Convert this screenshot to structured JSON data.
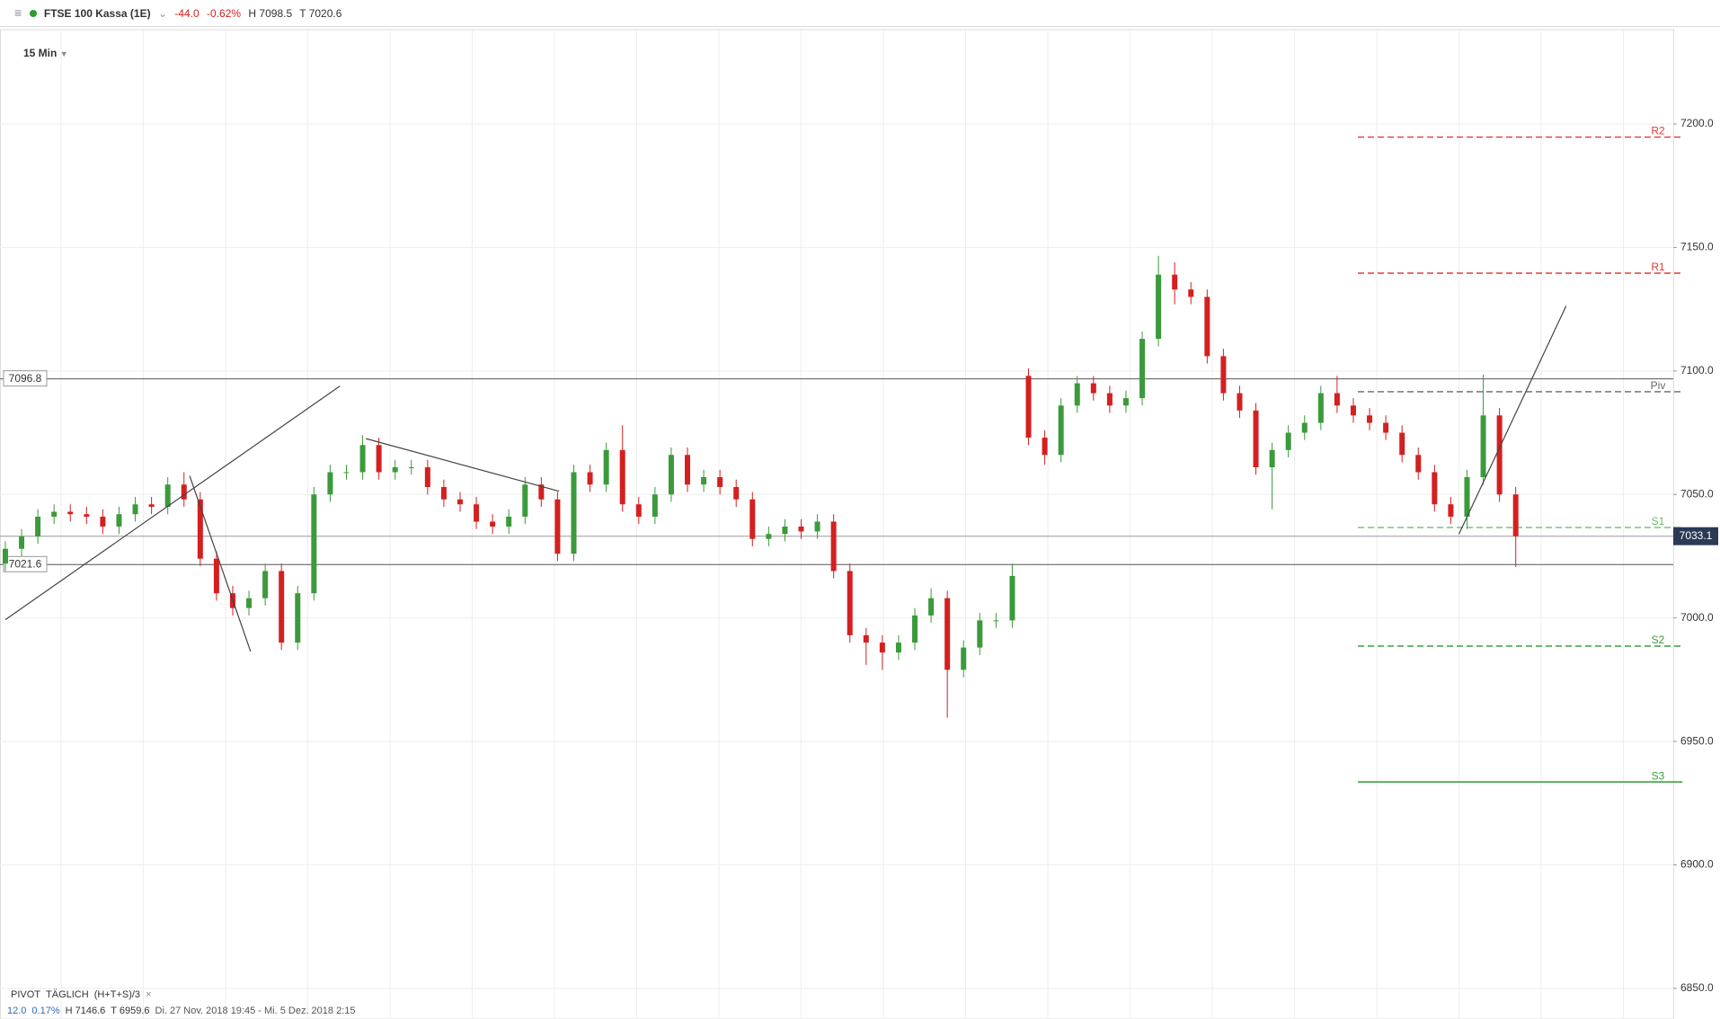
{
  "header": {
    "menu": "≡",
    "title": "FTSE 100 Kassa (1E)",
    "change": "-44.0",
    "change_pct": "-0.62%",
    "high": "H 7098.5",
    "low": "T 7020.6",
    "interval": "15 Min"
  },
  "footer": {
    "indicator": "PIVOT",
    "period": "TÄGLICH",
    "formula": "(H+T+S)/3",
    "close": "×",
    "change": "12.0",
    "change_pct": "0.17%",
    "high": "H 7146.6",
    "low": "T 6959.6",
    "range": "Di. 27 Nov. 2018 19:45 - Mi. 5 Dez. 2018 2:15"
  },
  "chart_data": {
    "type": "candlestick",
    "up_color": "#3b9a3b",
    "down_color": "#d42020",
    "xlim": [
      -0.33,
      102.7
    ],
    "ylim": [
      6837.6,
      7238.2
    ],
    "yticks": [
      {
        "value": 7200,
        "label": "7200.0"
      },
      {
        "value": 7150,
        "label": "7150.0"
      },
      {
        "value": 7100,
        "label": "7100.0"
      },
      {
        "value": 7050,
        "label": "7050.0"
      },
      {
        "value": 7000,
        "label": "7000.0"
      },
      {
        "value": 6950,
        "label": "6950.0"
      },
      {
        "value": 6900,
        "label": "6900.0"
      },
      {
        "value": 6850,
        "label": "6850.0"
      }
    ],
    "grid": true,
    "open": [
      7022,
      7028,
      7033,
      7041,
      7043,
      7042,
      7041,
      7037,
      7042,
      7046,
      7045,
      7054,
      7048,
      7024,
      7010,
      7004,
      7008,
      7019,
      6990,
      7010,
      7050,
      7059,
      7059,
      7070,
      7059,
      7061,
      7061,
      7053,
      7048,
      7046,
      7039,
      7037,
      7041,
      7054,
      7048,
      7026,
      7059,
      7054,
      7068,
      7046,
      7041,
      7050,
      7066,
      7054,
      7057,
      7053,
      7048,
      7032,
      7034,
      7037,
      7035,
      7039,
      7019,
      6993,
      6990,
      6986,
      6990,
      7001,
      7008,
      6979,
      6988,
      6999,
      6999,
      7098,
      7073,
      7066,
      7086,
      7095,
      7091,
      7086,
      7089,
      7113,
      7139,
      7133,
      7130,
      7106,
      7091,
      7084,
      7061,
      7068,
      7075,
      7079,
      7091,
      7086,
      7082,
      7079,
      7075,
      7066,
      7059,
      7046,
      7041,
      7057,
      7082,
      7050
    ],
    "high": [
      7031,
      7036,
      7044,
      7046,
      7046,
      7045,
      7044,
      7045,
      7049,
      7049,
      7057,
      7059,
      7051,
      7027,
      7013,
      7011,
      7022,
      7022,
      7013,
      7053,
      7062,
      7062,
      7074,
      7073,
      7064,
      7064,
      7064,
      7056,
      7051,
      7049,
      7042,
      7044,
      7057,
      7057,
      7051,
      7062,
      7062,
      7071,
      7078,
      7049,
      7053,
      7069,
      7069,
      7060,
      7060,
      7056,
      7051,
      7037,
      7040,
      7040,
      7042,
      7042,
      7022,
      6996,
      6993,
      6993,
      7004,
      7012,
      7011,
      6991,
      7002,
      7002,
      7022,
      7101,
      7076,
      7089,
      7098,
      7098,
      7094,
      7092,
      7116,
      7146.6,
      7144,
      7136,
      7133,
      7109,
      7094,
      7087,
      7071,
      7078,
      7082,
      7094,
      7098,
      7089,
      7085,
      7082,
      7078,
      7069,
      7062,
      7049,
      7060,
      7098.5,
      7085,
      7053
    ],
    "low": [
      7019,
      7025,
      7030,
      7038,
      7039,
      7038,
      7034,
      7034,
      7039,
      7042,
      7042,
      7045,
      7021,
      7007,
      7001,
      7001,
      7005,
      6987,
      6987,
      7007,
      7047,
      7056,
      7056,
      7056,
      7056,
      7058,
      7050,
      7045,
      7043,
      7036,
      7034,
      7034,
      7038,
      7045,
      7023,
      7023,
      7051,
      7051,
      7043,
      7038,
      7038,
      7047,
      7051,
      7051,
      7050,
      7045,
      7029,
      7029,
      7031,
      7032,
      7032,
      7016,
      6990,
      6981,
      6979,
      6983,
      6987,
      6998,
      6959.6,
      6976,
      6985,
      6996,
      6996,
      7070,
      7062,
      7063,
      7083,
      7088,
      7083,
      7083,
      7086,
      7110,
      7127,
      7127,
      7103,
      7088,
      7081,
      7058,
      7044,
      7065,
      7072,
      7076,
      7083,
      7079,
      7076,
      7072,
      7063,
      7056,
      7043,
      7038,
      7036,
      7054,
      7047,
      7020.6
    ],
    "close": [
      7028,
      7033,
      7041,
      7043,
      7042,
      7041,
      7037,
      7042,
      7046,
      7045,
      7054,
      7048,
      7024,
      7010,
      7004,
      7008,
      7019,
      6990,
      7010,
      7050,
      7059,
      7059,
      7070,
      7059,
      7061,
      7061,
      7053,
      7048,
      7046,
      7039,
      7037,
      7041,
      7054,
      7048,
      7026,
      7059,
      7054,
      7068,
      7046,
      7041,
      7050,
      7066,
      7054,
      7057,
      7053,
      7048,
      7032,
      7034,
      7037,
      7035,
      7039,
      7019,
      6993,
      6990,
      6986,
      6990,
      7001,
      7008,
      6979,
      6988,
      6999,
      6999,
      7017,
      7073,
      7066,
      7086,
      7095,
      7091,
      7086,
      7089,
      7113,
      7139,
      7133,
      7130,
      7106,
      7091,
      7084,
      7061,
      7068,
      7075,
      7079,
      7091,
      7086,
      7082,
      7079,
      7075,
      7066,
      7059,
      7046,
      7041,
      7057,
      7082,
      7050,
      7033.1
    ],
    "levels": [
      7096.8,
      7021.6
    ],
    "last_price": 7033.1,
    "trendlines": [
      {
        "x": [
          0,
          20.6
        ],
        "y": [
          6999.3,
          7093.9
        ]
      },
      {
        "x": [
          11.35,
          15.1
        ],
        "y": [
          7057.5,
          6986.4
        ]
      },
      {
        "x": [
          22.2,
          34.1
        ],
        "y": [
          7072.6,
          7051.3
        ]
      },
      {
        "x": [
          89.5,
          96.1
        ],
        "y": [
          7033.9,
          7126.3
        ]
      }
    ],
    "pivots": [
      {
        "name": "R2",
        "value": 7194.7,
        "color": "#e03a3a",
        "line": "dashed"
      },
      {
        "name": "R1",
        "value": 7139.6,
        "color": "#e03a3a",
        "line": "dashed"
      },
      {
        "name": "Piv",
        "value": 7091.6,
        "color": "#666666",
        "line": "dashed"
      },
      {
        "name": "S1",
        "value": 7036.6,
        "color": "#6cbf6c",
        "line": "dashed"
      },
      {
        "name": "S2",
        "value": 6988.6,
        "color": "#3f9f3f",
        "line": "dashed"
      },
      {
        "name": "S3",
        "value": 6933.6,
        "color": "#3f9f3f",
        "line": "solid"
      }
    ]
  }
}
